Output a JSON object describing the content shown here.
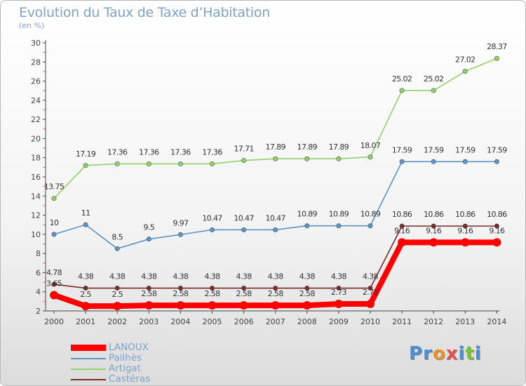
{
  "title": "Evolution du Taux de Taxe d’Habitation",
  "unit_label": "(en %)",
  "logo": {
    "letters": [
      "P",
      "r",
      "o",
      "x",
      "i",
      "t",
      "i"
    ],
    "colors": [
      "#4a8fd6",
      "#4a8fd6",
      "#e7962c",
      "#e2534a",
      "#4a8fd6",
      "#7bbf3a",
      "#4a8fd6"
    ]
  },
  "chart_data": {
    "type": "line",
    "title": "Evolution du Taux de Taxe d’Habitation",
    "ylabel": "(en %)",
    "xlabel": "",
    "x": [
      "2000",
      "2001",
      "2002",
      "2003",
      "2004",
      "2005",
      "2006",
      "2007",
      "2008",
      "2009",
      "2010",
      "2011",
      "2012",
      "2013",
      "2014"
    ],
    "ylim": [
      2,
      30
    ],
    "yticks": [
      2,
      4,
      6,
      8,
      10,
      12,
      14,
      16,
      18,
      20,
      22,
      24,
      26,
      28,
      30
    ],
    "grid": false,
    "legend_position": "bottom-left",
    "series": [
      {
        "name": "LANOUX",
        "color": "#ff0000",
        "labels": [
          "3.65",
          "2.5",
          "2.5",
          "2.58",
          "2.58",
          "2.58",
          "2.58",
          "2.58",
          "2.58",
          "2.73",
          "2.73",
          "9.16",
          "9.16",
          "9.16",
          "9.16"
        ],
        "values": [
          3.65,
          2.5,
          2.5,
          2.58,
          2.58,
          2.58,
          2.58,
          2.58,
          2.58,
          2.73,
          2.73,
          9.16,
          9.16,
          9.16,
          9.16
        ]
      },
      {
        "name": "Pailhès",
        "color": "#5b95c9",
        "labels": [
          "10",
          "11",
          "8.5",
          "9.5",
          "9.97",
          "10.47",
          "10.47",
          "10.47",
          "10.89",
          "10.89",
          "10.89",
          "17.59",
          "17.59",
          "17.59",
          "17.59"
        ],
        "values": [
          10,
          11,
          8.5,
          9.5,
          9.97,
          10.47,
          10.47,
          10.47,
          10.89,
          10.89,
          10.89,
          17.59,
          17.59,
          17.59,
          17.59
        ]
      },
      {
        "name": "Artigat",
        "color": "#8fd36a",
        "labels": [
          "13.75",
          "17.19",
          "17.36",
          "17.36",
          "17.36",
          "17.36",
          "17.71",
          "17.89",
          "17.89",
          "17.89",
          "18.07",
          "25.02",
          "25.02",
          "27.02",
          "28.37"
        ],
        "values": [
          13.75,
          17.19,
          17.36,
          17.36,
          17.36,
          17.36,
          17.71,
          17.89,
          17.89,
          17.89,
          18.07,
          25.02,
          25.02,
          27.02,
          28.37
        ]
      },
      {
        "name": "Castéras",
        "color": "#7b2a2a",
        "labels": [
          "4.78",
          "4.38",
          "4.38",
          "4.38",
          "4.38",
          "4.38",
          "4.38",
          "4.38",
          "4.38",
          "4.38",
          "4.38",
          "10.86",
          "10.86",
          "10.86",
          "10.86"
        ],
        "values": [
          4.78,
          4.38,
          4.38,
          4.38,
          4.38,
          4.38,
          4.38,
          4.38,
          4.38,
          4.38,
          4.38,
          10.86,
          10.86,
          10.86,
          10.86
        ]
      }
    ]
  }
}
